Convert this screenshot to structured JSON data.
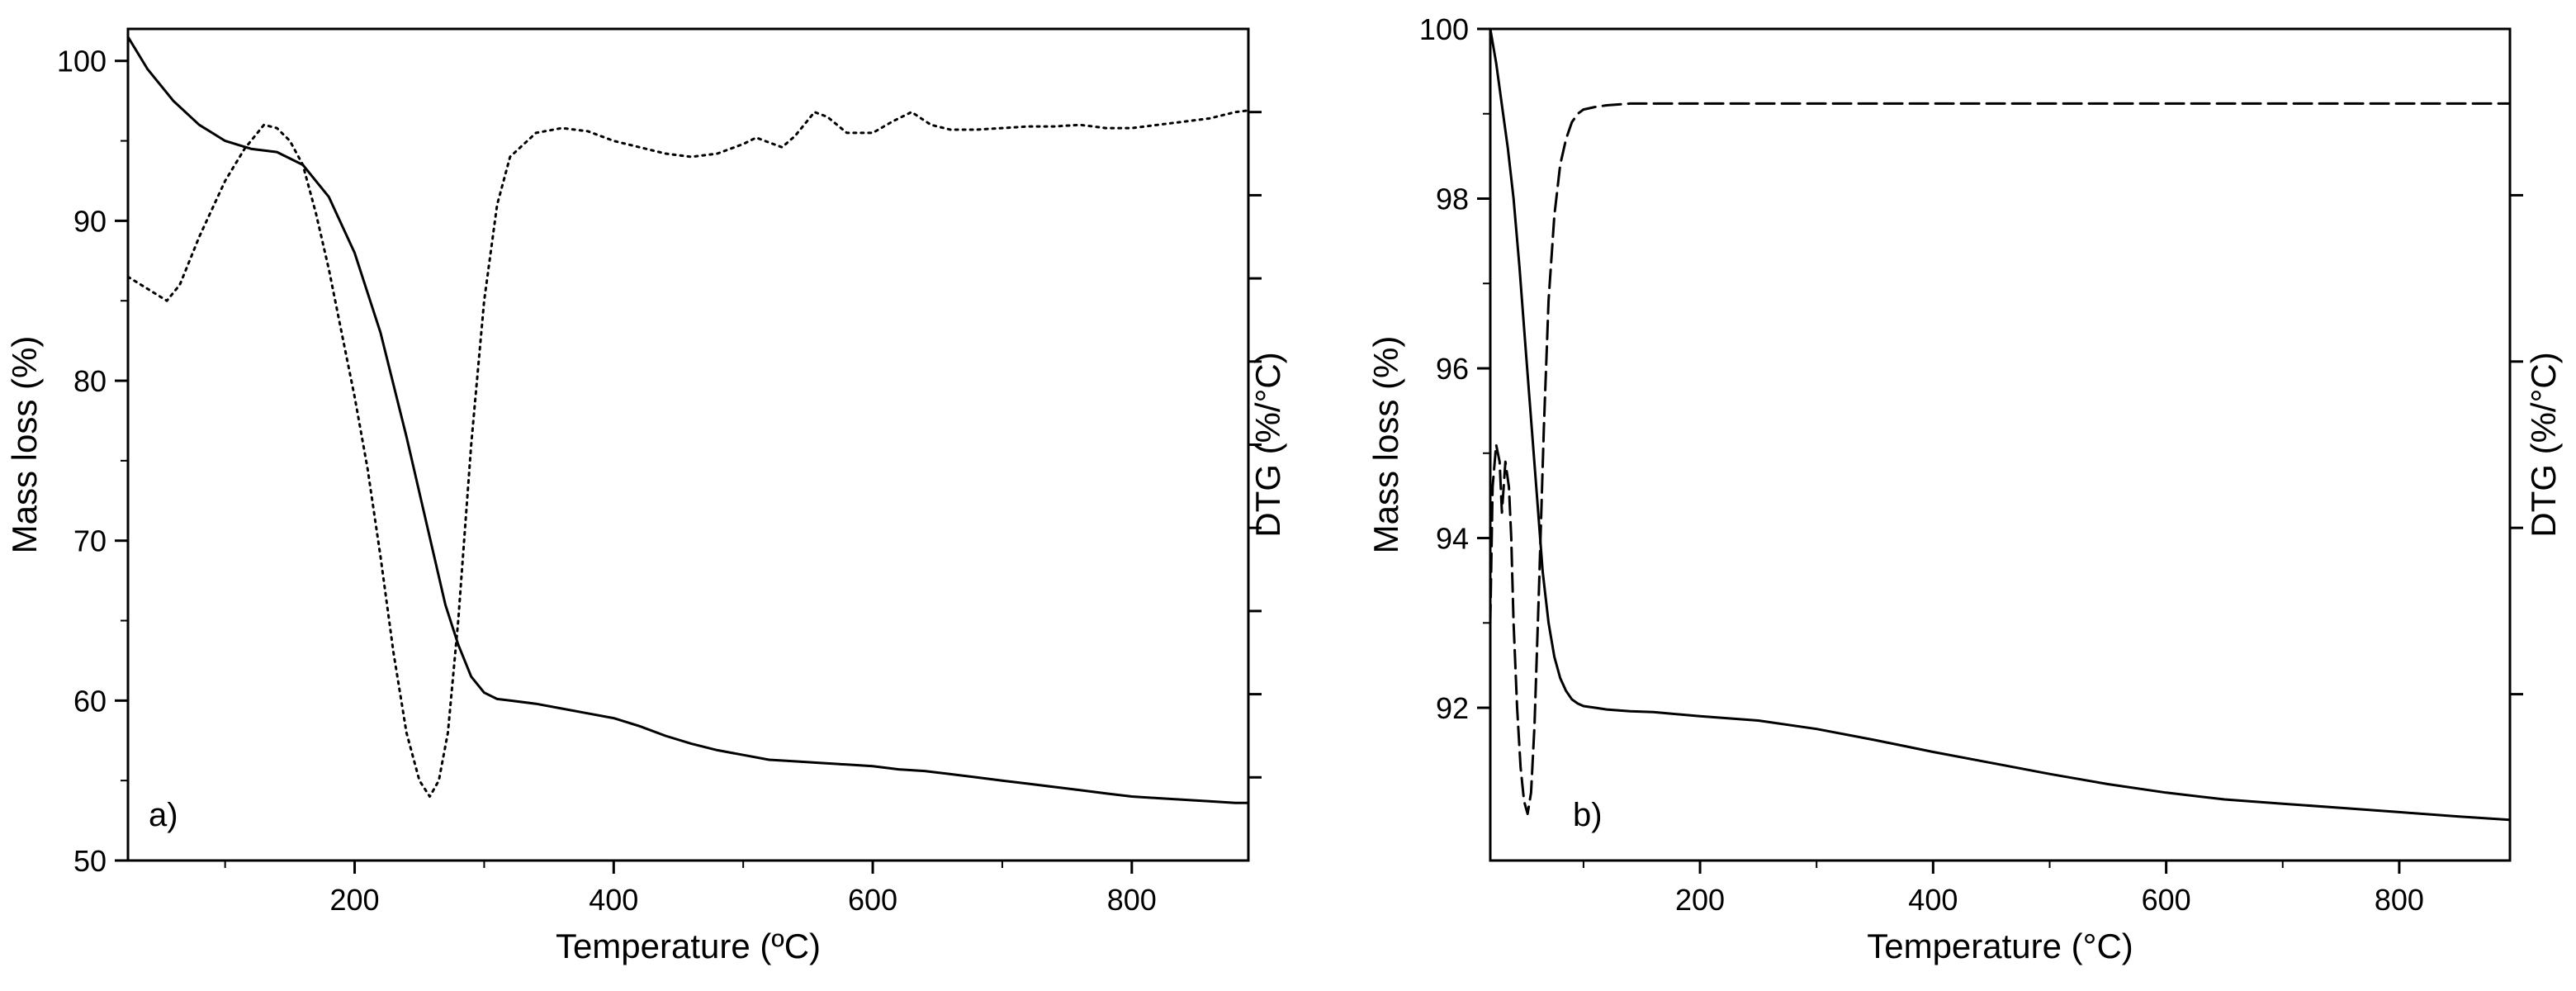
{
  "chart_data": [
    {
      "type": "line",
      "panel_label": "a)",
      "xlabel": "Temperature (ºC)",
      "ylabel": "Mass loss (%)",
      "y2label": "DTG (%/°C)",
      "xlim": [
        25,
        890
      ],
      "ylim": [
        50,
        102
      ],
      "xticks": [
        200,
        400,
        600,
        800
      ],
      "yticks": [
        50,
        60,
        70,
        80,
        90,
        100
      ],
      "y2_tick_count": 9,
      "series": [
        {
          "name": "Mass loss",
          "style": "solid",
          "axis": "left",
          "x": [
            25,
            40,
            60,
            80,
            100,
            120,
            140,
            160,
            180,
            200,
            220,
            240,
            260,
            270,
            280,
            290,
            300,
            310,
            320,
            340,
            360,
            380,
            400,
            420,
            440,
            460,
            480,
            500,
            520,
            540,
            560,
            580,
            600,
            620,
            640,
            660,
            680,
            700,
            720,
            740,
            760,
            780,
            800,
            820,
            840,
            860,
            880,
            890
          ],
          "y": [
            101.5,
            99.5,
            97.5,
            96.0,
            95.0,
            94.5,
            94.3,
            93.5,
            91.5,
            88.0,
            83.0,
            76.5,
            69.5,
            66.0,
            63.5,
            61.5,
            60.5,
            60.1,
            60.0,
            59.8,
            59.5,
            59.2,
            58.9,
            58.4,
            57.8,
            57.3,
            56.9,
            56.6,
            56.3,
            56.2,
            56.1,
            56.0,
            55.9,
            55.7,
            55.6,
            55.4,
            55.2,
            55.0,
            54.8,
            54.6,
            54.4,
            54.2,
            54.0,
            53.9,
            53.8,
            53.7,
            53.6,
            53.6
          ]
        },
        {
          "name": "DTG",
          "style": "dotted",
          "axis": "right",
          "x": [
            25,
            35,
            45,
            55,
            65,
            80,
            100,
            115,
            130,
            140,
            150,
            160,
            170,
            180,
            190,
            200,
            210,
            220,
            230,
            240,
            250,
            258,
            265,
            272,
            280,
            290,
            300,
            310,
            320,
            340,
            360,
            380,
            400,
            420,
            440,
            460,
            480,
            500,
            510,
            520,
            530,
            540,
            555,
            565,
            580,
            600,
            615,
            630,
            645,
            660,
            680,
            700,
            720,
            740,
            760,
            780,
            800,
            820,
            840,
            860,
            880,
            890
          ],
          "y": [
            86.5,
            86.0,
            85.5,
            85.0,
            86.0,
            89.0,
            92.5,
            94.5,
            96.0,
            95.8,
            95.0,
            93.5,
            90.5,
            87.0,
            83.0,
            79.0,
            74.5,
            69.0,
            63.0,
            58.0,
            55.0,
            54.0,
            55.0,
            58.0,
            65.0,
            76.0,
            85.0,
            91.0,
            94.0,
            95.5,
            95.8,
            95.6,
            95.0,
            94.6,
            94.2,
            94.0,
            94.2,
            94.8,
            95.2,
            94.9,
            94.6,
            95.3,
            96.8,
            96.5,
            95.5,
            95.5,
            96.2,
            96.8,
            96.0,
            95.7,
            95.7,
            95.8,
            95.9,
            95.9,
            96.0,
            95.8,
            95.8,
            96.0,
            96.2,
            96.4,
            96.8,
            96.9
          ]
        }
      ]
    },
    {
      "type": "line",
      "panel_label": "b)",
      "xlabel": "Temperature (°C)",
      "ylabel": "Mass loss (%)",
      "y2label": "DTG (%/°C)",
      "xlim": [
        20,
        895
      ],
      "ylim": [
        90.2,
        100
      ],
      "xticks": [
        200,
        400,
        600,
        800
      ],
      "yticks": [
        92,
        94,
        96,
        98,
        100
      ],
      "y2_tick_count": 4,
      "series": [
        {
          "name": "Mass loss",
          "style": "solid",
          "axis": "left",
          "x": [
            20,
            25,
            30,
            35,
            40,
            45,
            50,
            55,
            60,
            65,
            70,
            75,
            80,
            85,
            90,
            95,
            100,
            110,
            120,
            140,
            160,
            200,
            250,
            300,
            350,
            400,
            450,
            500,
            550,
            600,
            650,
            700,
            750,
            800,
            850,
            895
          ],
          "y": [
            100.0,
            99.6,
            99.1,
            98.6,
            98.0,
            97.2,
            96.3,
            95.4,
            94.5,
            93.6,
            93.0,
            92.6,
            92.35,
            92.2,
            92.1,
            92.05,
            92.02,
            92.0,
            91.98,
            91.96,
            91.95,
            91.9,
            91.85,
            91.75,
            91.62,
            91.48,
            91.35,
            91.22,
            91.1,
            91.0,
            90.92,
            90.87,
            90.82,
            90.77,
            90.72,
            90.68
          ]
        },
        {
          "name": "DTG",
          "style": "dashed",
          "axis": "right",
          "x": [
            20,
            22,
            25,
            28,
            30,
            33,
            36,
            38,
            40,
            43,
            46,
            49,
            52,
            55,
            58,
            62,
            66,
            70,
            75,
            80,
            85,
            90,
            95,
            100,
            110,
            120,
            140,
            160,
            200,
            300,
            400,
            500,
            600,
            700,
            800,
            895
          ],
          "y": [
            93.0,
            94.6,
            95.1,
            94.9,
            94.3,
            94.9,
            94.6,
            94.0,
            93.0,
            92.0,
            91.3,
            90.9,
            90.75,
            91.0,
            91.8,
            93.5,
            95.3,
            96.8,
            97.8,
            98.4,
            98.7,
            98.9,
            99.0,
            99.05,
            99.08,
            99.1,
            99.12,
            99.12,
            99.12,
            99.12,
            99.12,
            99.12,
            99.12,
            99.12,
            99.12,
            99.12
          ]
        }
      ]
    }
  ]
}
